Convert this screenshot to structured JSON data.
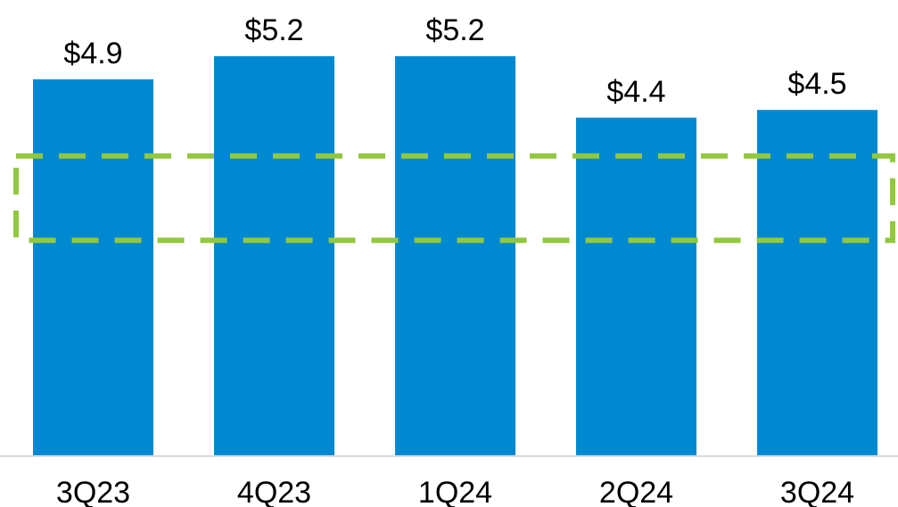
{
  "chart_data": {
    "type": "bar",
    "categories": [
      "3Q23",
      "4Q23",
      "1Q24",
      "2Q24",
      "3Q24"
    ],
    "values": [
      4.9,
      5.2,
      5.2,
      4.4,
      4.5
    ],
    "value_labels": [
      "$4.9",
      "$5.2",
      "$5.2",
      "$4.4",
      "$4.5"
    ],
    "title": "",
    "xlabel": "",
    "ylabel": "",
    "ylim": [
      0,
      5.2
    ],
    "grid": false,
    "legend": "none",
    "highlight_band": [
      2.8,
      3.9
    ],
    "colors": {
      "bar": "#0089D1",
      "highlight": "#92C83E",
      "axis": "#D9D9D9",
      "text": "#000000"
    }
  }
}
